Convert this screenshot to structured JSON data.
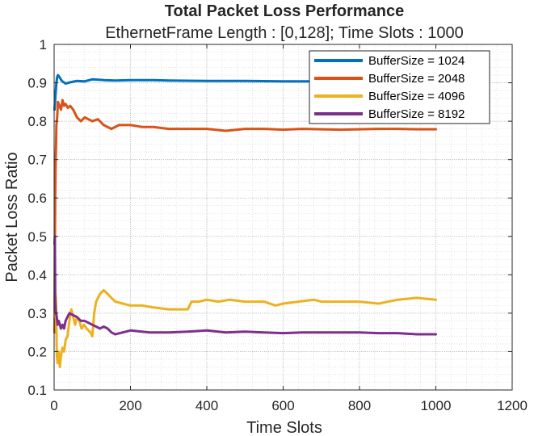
{
  "chart_data": {
    "type": "line",
    "title": "Total Packet Loss Performance",
    "subtitle": "EthernetFrame Length : [0,128]; Time Slots : 1000",
    "xlabel": "Time Slots",
    "ylabel": "Packet Loss Ratio",
    "xlim": [
      0,
      1200
    ],
    "ylim": [
      0.1,
      1
    ],
    "xticks": [
      "0",
      "200",
      "400",
      "600",
      "800",
      "1000",
      "1200"
    ],
    "yticks": [
      "0.1",
      "0.2",
      "0.3",
      "0.4",
      "0.5",
      "0.6",
      "0.7",
      "0.8",
      "0.9",
      "1"
    ],
    "grid": "on (major + minor, dotted)",
    "legend_position": "top-right",
    "series": [
      {
        "name": "BufferSize = 1024",
        "color": "#0072BD",
        "x": [
          1,
          3,
          6,
          8,
          10,
          14,
          20,
          30,
          45,
          60,
          80,
          100,
          130,
          160,
          200,
          260,
          300,
          400,
          500,
          600,
          700,
          800,
          900,
          1000
        ],
        "y": [
          0.83,
          0.86,
          0.9,
          0.915,
          0.92,
          0.915,
          0.905,
          0.898,
          0.902,
          0.905,
          0.904,
          0.909,
          0.907,
          0.906,
          0.907,
          0.907,
          0.906,
          0.905,
          0.905,
          0.904,
          0.904,
          0.903,
          0.903,
          0.903
        ]
      },
      {
        "name": "BufferSize = 2048",
        "color": "#D95319",
        "x": [
          1,
          2,
          3,
          4,
          5,
          6,
          8,
          10,
          14,
          18,
          22,
          26,
          30,
          36,
          42,
          50,
          60,
          70,
          80,
          90,
          100,
          115,
          130,
          150,
          170,
          200,
          230,
          260,
          300,
          350,
          400,
          450,
          500,
          550,
          600,
          650,
          700,
          750,
          800,
          850,
          900,
          950,
          1000
        ],
        "y": [
          0.25,
          0.47,
          0.62,
          0.7,
          0.74,
          0.79,
          0.81,
          0.85,
          0.84,
          0.83,
          0.855,
          0.84,
          0.845,
          0.835,
          0.84,
          0.83,
          0.81,
          0.8,
          0.81,
          0.805,
          0.8,
          0.805,
          0.79,
          0.78,
          0.79,
          0.79,
          0.785,
          0.785,
          0.78,
          0.78,
          0.78,
          0.775,
          0.78,
          0.78,
          0.778,
          0.78,
          0.779,
          0.778,
          0.779,
          0.78,
          0.78,
          0.779,
          0.779
        ]
      },
      {
        "name": "BufferSize = 4096",
        "color": "#EDB120",
        "x": [
          1,
          3,
          5,
          7,
          9,
          12,
          15,
          18,
          22,
          26,
          30,
          35,
          40,
          45,
          50,
          55,
          60,
          66,
          72,
          78,
          85,
          95,
          100,
          105,
          110,
          115,
          120,
          125,
          130,
          140,
          150,
          160,
          180,
          200,
          230,
          260,
          300,
          330,
          350,
          360,
          380,
          400,
          430,
          460,
          500,
          550,
          580,
          600,
          640,
          680,
          700,
          750,
          800,
          850,
          900,
          950,
          1000
        ],
        "y": [
          0.29,
          0.35,
          0.33,
          0.19,
          0.17,
          0.2,
          0.16,
          0.19,
          0.21,
          0.2,
          0.23,
          0.24,
          0.28,
          0.31,
          0.29,
          0.27,
          0.29,
          0.28,
          0.26,
          0.27,
          0.26,
          0.25,
          0.24,
          0.3,
          0.33,
          0.34,
          0.35,
          0.355,
          0.36,
          0.35,
          0.34,
          0.33,
          0.325,
          0.32,
          0.32,
          0.315,
          0.31,
          0.31,
          0.31,
          0.33,
          0.33,
          0.335,
          0.33,
          0.335,
          0.33,
          0.33,
          0.32,
          0.325,
          0.33,
          0.335,
          0.33,
          0.33,
          0.33,
          0.325,
          0.335,
          0.34,
          0.335
        ]
      },
      {
        "name": "BufferSize = 8192",
        "color": "#7E2F8E",
        "x": [
          1,
          2,
          3,
          4,
          5,
          7,
          9,
          12,
          15,
          18,
          22,
          26,
          30,
          35,
          40,
          50,
          60,
          70,
          80,
          90,
          100,
          120,
          130,
          140,
          150,
          160,
          180,
          200,
          250,
          300,
          350,
          400,
          450,
          500,
          550,
          600,
          650,
          700,
          750,
          800,
          850,
          900,
          950,
          1000
        ],
        "y": [
          0.48,
          0.5,
          0.33,
          0.31,
          0.3,
          0.29,
          0.27,
          0.28,
          0.27,
          0.26,
          0.27,
          0.26,
          0.28,
          0.29,
          0.3,
          0.295,
          0.29,
          0.28,
          0.28,
          0.275,
          0.27,
          0.26,
          0.265,
          0.26,
          0.25,
          0.245,
          0.25,
          0.255,
          0.25,
          0.25,
          0.252,
          0.255,
          0.25,
          0.252,
          0.25,
          0.248,
          0.25,
          0.25,
          0.25,
          0.25,
          0.248,
          0.248,
          0.245,
          0.245
        ]
      }
    ]
  }
}
